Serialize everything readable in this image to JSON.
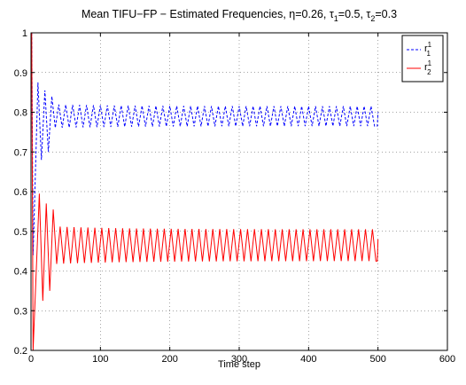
{
  "chart_data": {
    "type": "line",
    "title": "Mean TIFU−FP − Estimated Frequencies, η=0.26, τ",
    "title_parts": {
      "prefix": "Mean TIFU−FP − Estimated Frequencies, η=0.26, τ",
      "sub1": "1",
      "mid": "=0.5, τ",
      "sub2": "2",
      "suffix": "=0.3"
    },
    "xlabel": "Time step",
    "ylabel": "",
    "xlim": [
      0,
      600
    ],
    "ylim": [
      0.2,
      1.0
    ],
    "xticks": [
      0,
      100,
      200,
      300,
      400,
      500,
      600
    ],
    "yticks": [
      0.2,
      0.3,
      0.4,
      0.5,
      0.6,
      0.7,
      0.8,
      0.9,
      1.0
    ],
    "xtick_labels": [
      "0",
      "100",
      "200",
      "300",
      "400",
      "500",
      "600"
    ],
    "ytick_labels": [
      "0.2",
      "0.3",
      "0.4",
      "0.5",
      "0.6",
      "0.7",
      "0.8",
      "0.9",
      "1"
    ],
    "grid": true,
    "legend_position": "top-right",
    "series": [
      {
        "name": "r",
        "name_sup": "1",
        "name_sub": "1",
        "color": "#0000ff",
        "style": "dashed",
        "x_range": [
          1,
          500
        ],
        "start_value": 1.0,
        "initial_dip": 0.44,
        "steady_high": 0.815,
        "steady_low": 0.765,
        "peaks": [
          {
            "x": 10,
            "y": 0.875
          },
          {
            "x": 15,
            "y": 0.68
          },
          {
            "x": 20,
            "y": 0.855
          },
          {
            "x": 25,
            "y": 0.7
          },
          {
            "x": 30,
            "y": 0.84
          }
        ],
        "end_point": {
          "x": 500,
          "y": 0.8
        }
      },
      {
        "name": "r",
        "name_sup": "1",
        "name_sub": "2",
        "color": "#ff0000",
        "style": "solid",
        "x_range": [
          1,
          500
        ],
        "start_value": 1.0,
        "initial_dip": 0.2,
        "steady_high": 0.505,
        "steady_low": 0.425,
        "peaks": [
          {
            "x": 12,
            "y": 0.595
          },
          {
            "x": 17,
            "y": 0.325
          },
          {
            "x": 22,
            "y": 0.57
          },
          {
            "x": 27,
            "y": 0.35
          },
          {
            "x": 32,
            "y": 0.555
          }
        ],
        "end_point": {
          "x": 500,
          "y": 0.48
        }
      }
    ]
  }
}
